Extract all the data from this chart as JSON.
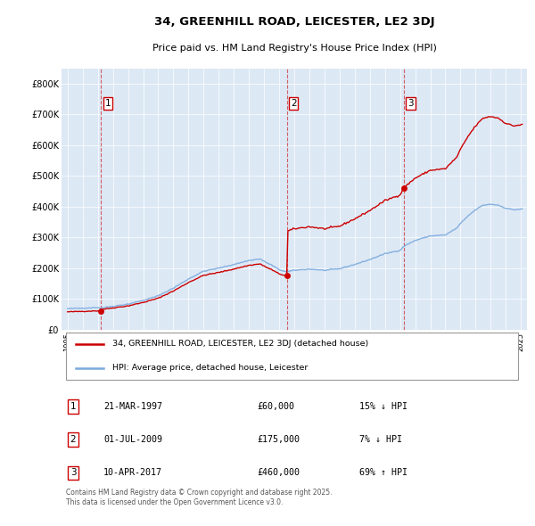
{
  "title_line1": "34, GREENHILL ROAD, LEICESTER, LE2 3DJ",
  "title_line2": "Price paid vs. HM Land Registry's House Price Index (HPI)",
  "legend_line1": "34, GREENHILL ROAD, LEICESTER, LE2 3DJ (detached house)",
  "legend_line2": "HPI: Average price, detached house, Leicester",
  "footer": "Contains HM Land Registry data © Crown copyright and database right 2025.\nThis data is licensed under the Open Government Licence v3.0.",
  "sale_color": "#cc0000",
  "hpi_color": "#7aaadd",
  "background_color": "#dde8f5",
  "ylim": [
    0,
    850000
  ],
  "yticks": [
    0,
    100000,
    200000,
    300000,
    400000,
    500000,
    600000,
    700000,
    800000
  ],
  "ytick_labels": [
    "£0",
    "£100K",
    "£200K",
    "£300K",
    "£400K",
    "£500K",
    "£600K",
    "£700K",
    "£800K"
  ],
  "sale_dates_num": [
    1997.22,
    2009.5,
    2017.27
  ],
  "sale_prices": [
    60000,
    175000,
    460000
  ],
  "sale_labels": [
    "1",
    "2",
    "3"
  ],
  "sale_table": [
    {
      "num": "1",
      "date": "21-MAR-1997",
      "price": "£60,000",
      "hpi_diff": "15% ↓ HPI"
    },
    {
      "num": "2",
      "date": "01-JUL-2009",
      "price": "£175,000",
      "hpi_diff": "7% ↓ HPI"
    },
    {
      "num": "3",
      "date": "10-APR-2017",
      "price": "£460,000",
      "hpi_diff": "69% ↑ HPI"
    }
  ],
  "xlim_start": 1994.6,
  "xlim_end": 2025.4,
  "xtick_years": [
    1995,
    1996,
    1997,
    1998,
    1999,
    2000,
    2001,
    2002,
    2003,
    2004,
    2005,
    2006,
    2007,
    2008,
    2009,
    2010,
    2011,
    2012,
    2013,
    2014,
    2015,
    2016,
    2017,
    2018,
    2019,
    2020,
    2021,
    2022,
    2023,
    2024,
    2025
  ]
}
